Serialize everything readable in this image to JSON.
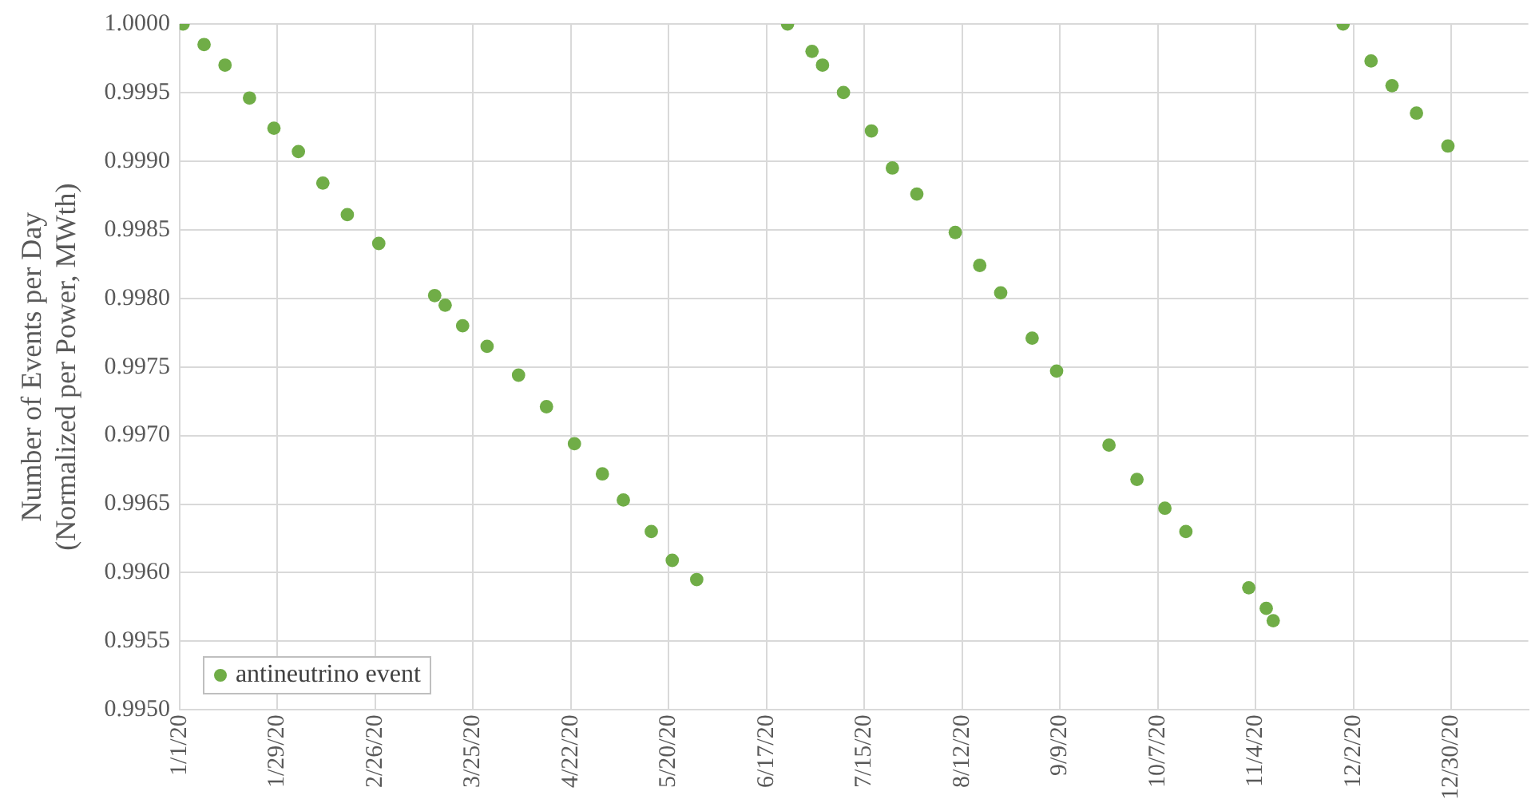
{
  "chart_data": {
    "type": "scatter",
    "ylabel": "Number of Events per Day\n(Normalized per Power, MWth)",
    "series": [
      {
        "name": "antineutrino event",
        "color": "#70ad47",
        "x": [
          "2020-01-02",
          "2020-01-08",
          "2020-01-14",
          "2020-01-21",
          "2020-01-28",
          "2020-02-04",
          "2020-02-11",
          "2020-02-18",
          "2020-02-27",
          "2020-03-14",
          "2020-03-17",
          "2020-03-22",
          "2020-03-29",
          "2020-04-07",
          "2020-04-15",
          "2020-04-23",
          "2020-05-01",
          "2020-05-07",
          "2020-05-15",
          "2020-05-21",
          "2020-05-28",
          "2020-06-23",
          "2020-06-30",
          "2020-07-03",
          "2020-07-09",
          "2020-07-17",
          "2020-07-23",
          "2020-07-30",
          "2020-08-10",
          "2020-08-17",
          "2020-08-23",
          "2020-09-01",
          "2020-09-08",
          "2020-09-23",
          "2020-10-01",
          "2020-10-09",
          "2020-10-15",
          "2020-11-02",
          "2020-11-07",
          "2020-11-09",
          "2020-11-29",
          "2020-12-07",
          "2020-12-13",
          "2020-12-20",
          "2020-12-29"
        ],
        "values": [
          1.0,
          0.99985,
          0.9997,
          0.99946,
          0.99924,
          0.99907,
          0.99884,
          0.99861,
          0.9984,
          0.99802,
          0.99795,
          0.9978,
          0.99765,
          0.99744,
          0.99721,
          0.99694,
          0.99672,
          0.99653,
          0.9963,
          0.99609,
          0.99595,
          1.0,
          0.9998,
          0.9997,
          0.9995,
          0.99922,
          0.99895,
          0.99876,
          0.99848,
          0.99824,
          0.99804,
          0.99771,
          0.99747,
          0.99693,
          0.99668,
          0.99647,
          0.9963,
          0.99589,
          0.99574,
          0.99565,
          1.0,
          0.99973,
          0.99955,
          0.99935,
          0.99911
        ]
      }
    ],
    "xlim": [
      "2020-01-01",
      "2021-01-21"
    ],
    "xticks": [
      {
        "value": "2020-01-01",
        "label": "1/1/20"
      },
      {
        "value": "2020-01-29",
        "label": "1/29/20"
      },
      {
        "value": "2020-02-26",
        "label": "2/26/20"
      },
      {
        "value": "2020-03-25",
        "label": "3/25/20"
      },
      {
        "value": "2020-04-22",
        "label": "4/22/20"
      },
      {
        "value": "2020-05-20",
        "label": "5/20/20"
      },
      {
        "value": "2020-06-17",
        "label": "6/17/20"
      },
      {
        "value": "2020-07-15",
        "label": "7/15/20"
      },
      {
        "value": "2020-08-12",
        "label": "8/12/20"
      },
      {
        "value": "2020-09-09",
        "label": "9/9/20"
      },
      {
        "value": "2020-10-07",
        "label": "10/7/20"
      },
      {
        "value": "2020-11-04",
        "label": "11/4/20"
      },
      {
        "value": "2020-12-02",
        "label": "12/2/20"
      },
      {
        "value": "2020-12-30",
        "label": "12/30/20"
      }
    ],
    "ylim": [
      0.995,
      1.0
    ],
    "yticks": [
      {
        "value": 0.995,
        "label": "0.9950"
      },
      {
        "value": 0.9955,
        "label": "0.9955"
      },
      {
        "value": 0.996,
        "label": "0.9960"
      },
      {
        "value": 0.9965,
        "label": "0.9965"
      },
      {
        "value": 0.997,
        "label": "0.9970"
      },
      {
        "value": 0.9975,
        "label": "0.9975"
      },
      {
        "value": 0.998,
        "label": "0.9980"
      },
      {
        "value": 0.9985,
        "label": "0.9985"
      },
      {
        "value": 0.999,
        "label": "0.9990"
      },
      {
        "value": 0.9995,
        "label": "0.9995"
      },
      {
        "value": 1.0,
        "label": "1.0000"
      }
    ],
    "grid": true,
    "legend": "bottom left",
    "marker": "circle"
  }
}
